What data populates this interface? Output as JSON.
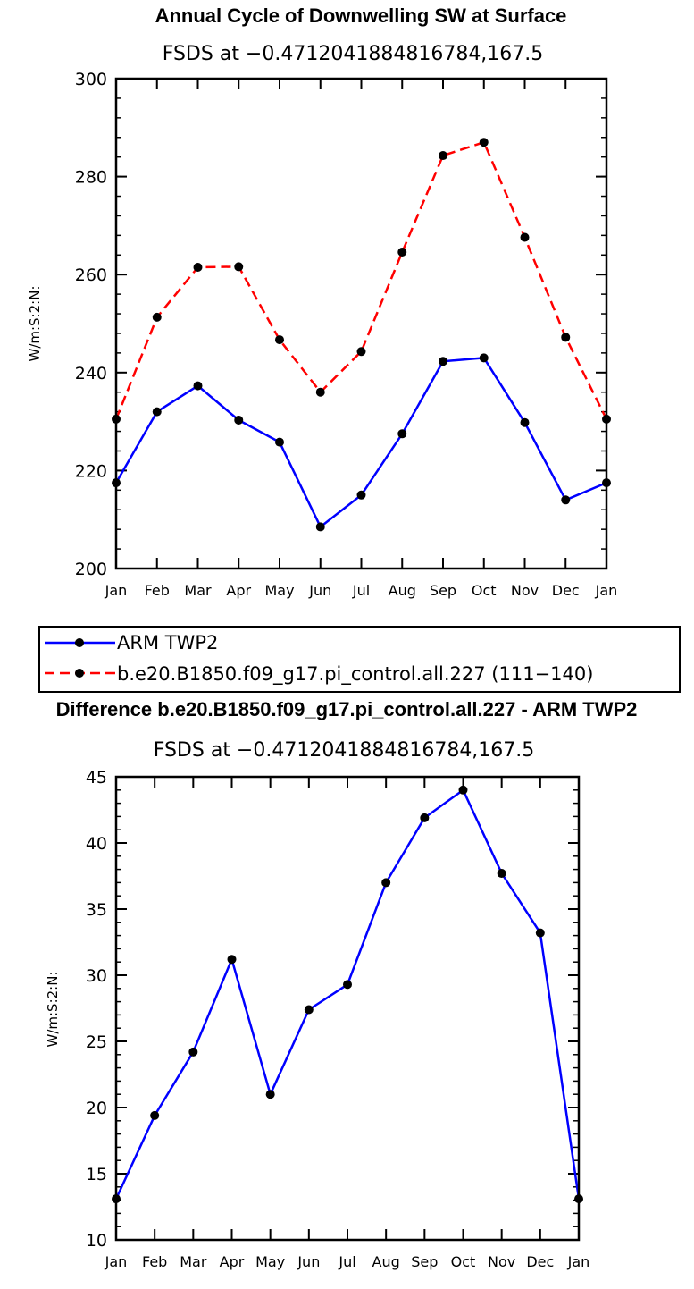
{
  "chart_data": [
    {
      "type": "line",
      "title": "Annual Cycle of Downwelling SW at Surface",
      "subtitle": "FSDS at −0.4712041884816784,167.5",
      "ylabel": "W/m:S:2:N:",
      "xlabel": "",
      "categories": [
        "Jan",
        "Feb",
        "Mar",
        "Apr",
        "May",
        "Jun",
        "Jul",
        "Aug",
        "Sep",
        "Oct",
        "Nov",
        "Dec",
        "Jan"
      ],
      "ylim": [
        200,
        300
      ],
      "yticks": [
        "200",
        "220",
        "240",
        "260",
        "280",
        "300"
      ],
      "series": [
        {
          "name": "ARM TWP2",
          "color": "#0000ff",
          "dash": "solid",
          "values": [
            217.5,
            232.0,
            237.3,
            230.3,
            225.8,
            208.5,
            215.0,
            227.5,
            242.3,
            243.0,
            229.8,
            214.0,
            217.5
          ]
        },
        {
          "name": "b.e20.B1850.f09_g17.pi_control.all.227 (111−140)",
          "color": "#ff0000",
          "dash": "dashed",
          "values": [
            230.5,
            251.3,
            261.5,
            261.6,
            246.7,
            236.0,
            244.3,
            264.6,
            284.3,
            287.0,
            267.6,
            247.2,
            230.5
          ]
        }
      ]
    },
    {
      "type": "line",
      "title": "Difference b.e20.B1850.f09_g17.pi_control.all.227 - ARM TWP2",
      "subtitle": "FSDS at −0.4712041884816784,167.5",
      "ylabel": "W/m:S:2:N:",
      "xlabel": "",
      "categories": [
        "Jan",
        "Feb",
        "Mar",
        "Apr",
        "May",
        "Jun",
        "Jul",
        "Aug",
        "Sep",
        "Oct",
        "Nov",
        "Dec",
        "Jan"
      ],
      "ylim": [
        10,
        45
      ],
      "yticks": [
        "10",
        "15",
        "20",
        "25",
        "30",
        "35",
        "40",
        "45"
      ],
      "series": [
        {
          "name": "Difference",
          "color": "#0000ff",
          "dash": "solid",
          "values": [
            13.1,
            19.4,
            24.2,
            31.2,
            21.0,
            27.4,
            29.3,
            37.0,
            41.9,
            44.0,
            37.7,
            33.2,
            13.1
          ]
        }
      ]
    }
  ]
}
